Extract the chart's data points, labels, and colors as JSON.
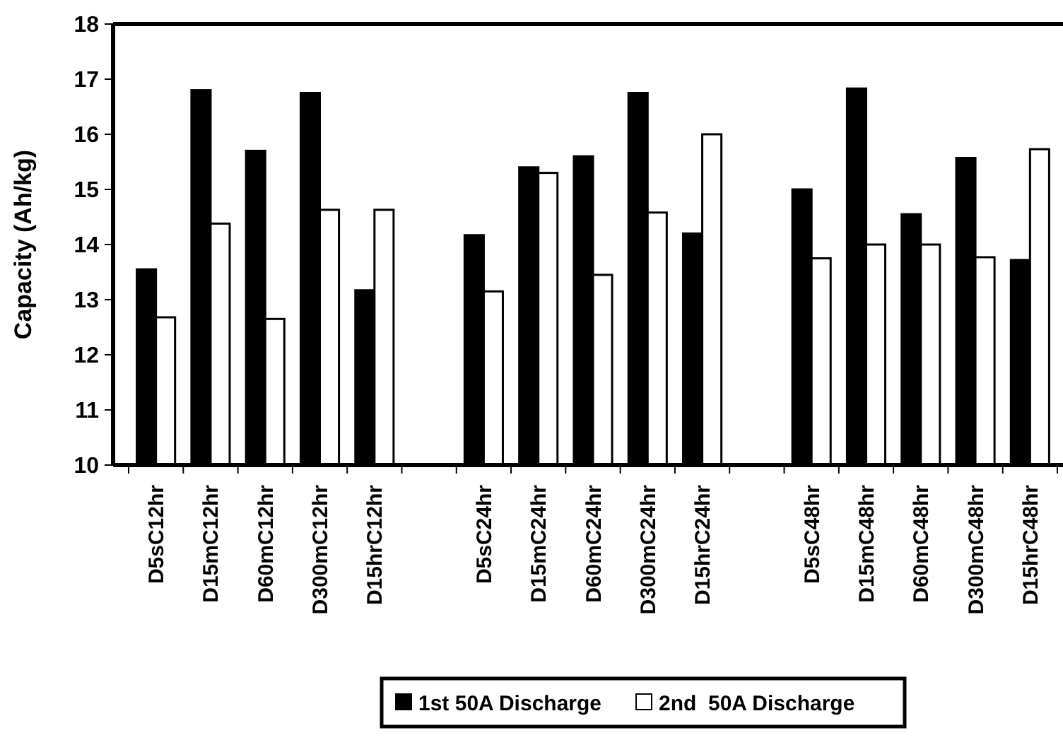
{
  "chart_data": {
    "type": "bar",
    "ylabel": "Capacity (Ah/kg)",
    "categories": [
      "D5sC12hr",
      "D15mC12hr",
      "D60mC12hr",
      "D300mC12hr",
      "D15hrC12hr",
      null,
      "D5sC24hr",
      "D15mC24hr",
      "D60mC24hr",
      "D300mC24hr",
      "D15hrC24hr",
      null,
      "D5sC48hr",
      "D15mC48hr",
      "D60mC48hr",
      "D300mC48hr",
      "D15hrC48hr"
    ],
    "series": [
      {
        "name": "1st 50A Discharge",
        "color": "#000000",
        "values": [
          13.55,
          16.8,
          15.7,
          16.75,
          13.17,
          null,
          14.17,
          15.4,
          15.6,
          16.75,
          14.2,
          null,
          15.0,
          16.83,
          14.55,
          15.57,
          13.72
        ]
      },
      {
        "name": "2nd  50A Discharge",
        "color": "#ffffff",
        "values": [
          12.68,
          14.38,
          12.65,
          14.63,
          14.63,
          null,
          13.15,
          15.3,
          13.45,
          14.58,
          16.0,
          null,
          13.75,
          14.0,
          14.0,
          13.77,
          15.73
        ]
      }
    ],
    "ylim": [
      10,
      18
    ],
    "yticks": [
      10,
      11,
      12,
      13,
      14,
      15,
      16,
      17,
      18
    ],
    "grid": false,
    "legend": "bottom"
  }
}
